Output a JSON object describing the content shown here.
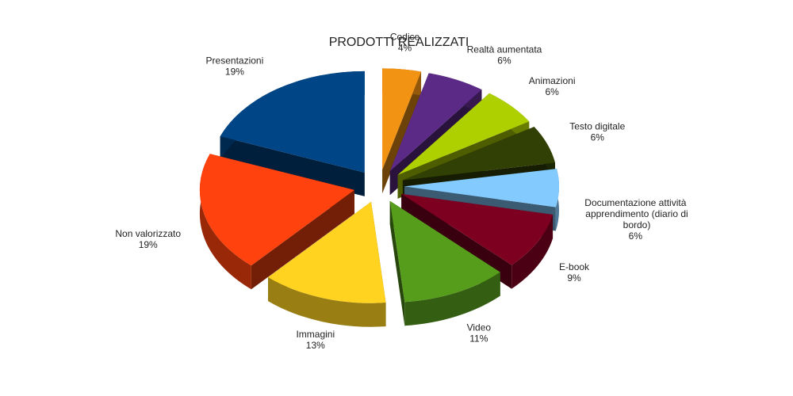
{
  "chart_data": {
    "type": "pie3d",
    "title": "PRODOTTI REALIZZATI",
    "categories": [
      "Codice",
      "Realtà aumentata",
      "Animazioni",
      "Testo digitale",
      "Documentazione attività apprendimento (diario di bordo)",
      "E-book",
      "Video",
      "Immagini",
      "Non valorizzato",
      "Presentazioni"
    ],
    "values": [
      4,
      6,
      6,
      6,
      6,
      9,
      11,
      13,
      19,
      19
    ],
    "value_labels": [
      "4%",
      "6%",
      "6%",
      "6%",
      "6%",
      "9%",
      "11%",
      "13%",
      "19%",
      "19%"
    ],
    "colors": [
      "#f39314",
      "#5b2a86",
      "#aecf00",
      "#314004",
      "#83caff",
      "#7e0021",
      "#579d1c",
      "#ffd320",
      "#ff420e",
      "#004586"
    ]
  }
}
